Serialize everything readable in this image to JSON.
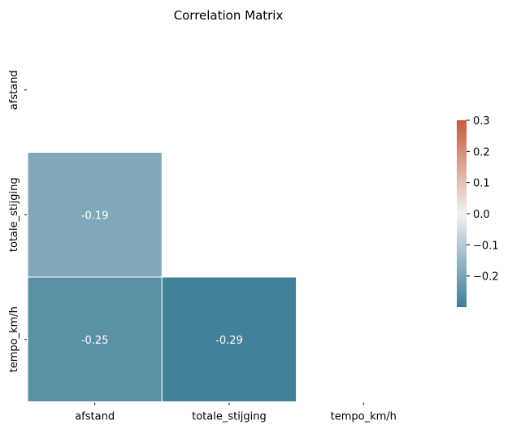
{
  "chart_data": {
    "type": "heatmap",
    "title": "Correlation Matrix",
    "variables": [
      "afstand",
      "totale_stijging",
      "tempo_km/h"
    ],
    "mask": "upper-triangle-including-diagonal",
    "cells": [
      {
        "row": "totale_stijging",
        "col": "afstand",
        "value": -0.19,
        "label": "-0.19"
      },
      {
        "row": "tempo_km/h",
        "col": "afstand",
        "value": -0.25,
        "label": "-0.25"
      },
      {
        "row": "tempo_km/h",
        "col": "totale_stijging",
        "value": -0.29,
        "label": "-0.29"
      }
    ],
    "colorbar": {
      "vmin": -0.3,
      "vmax": 0.3,
      "ticks": [
        0.3,
        0.2,
        0.1,
        0.0,
        -0.1,
        -0.2
      ],
      "tick_labels": [
        "0.3",
        "0.2",
        "0.1",
        "0.0",
        "−0.1",
        "−0.2"
      ],
      "colormap": "diverging-blue-red",
      "color_low": "#3d7e98",
      "color_mid": "#f2f2f2",
      "color_high": "#c45b3e"
    },
    "cell_border_color": "#ffffff",
    "annotation_color": "#ffffff",
    "grid": false
  }
}
